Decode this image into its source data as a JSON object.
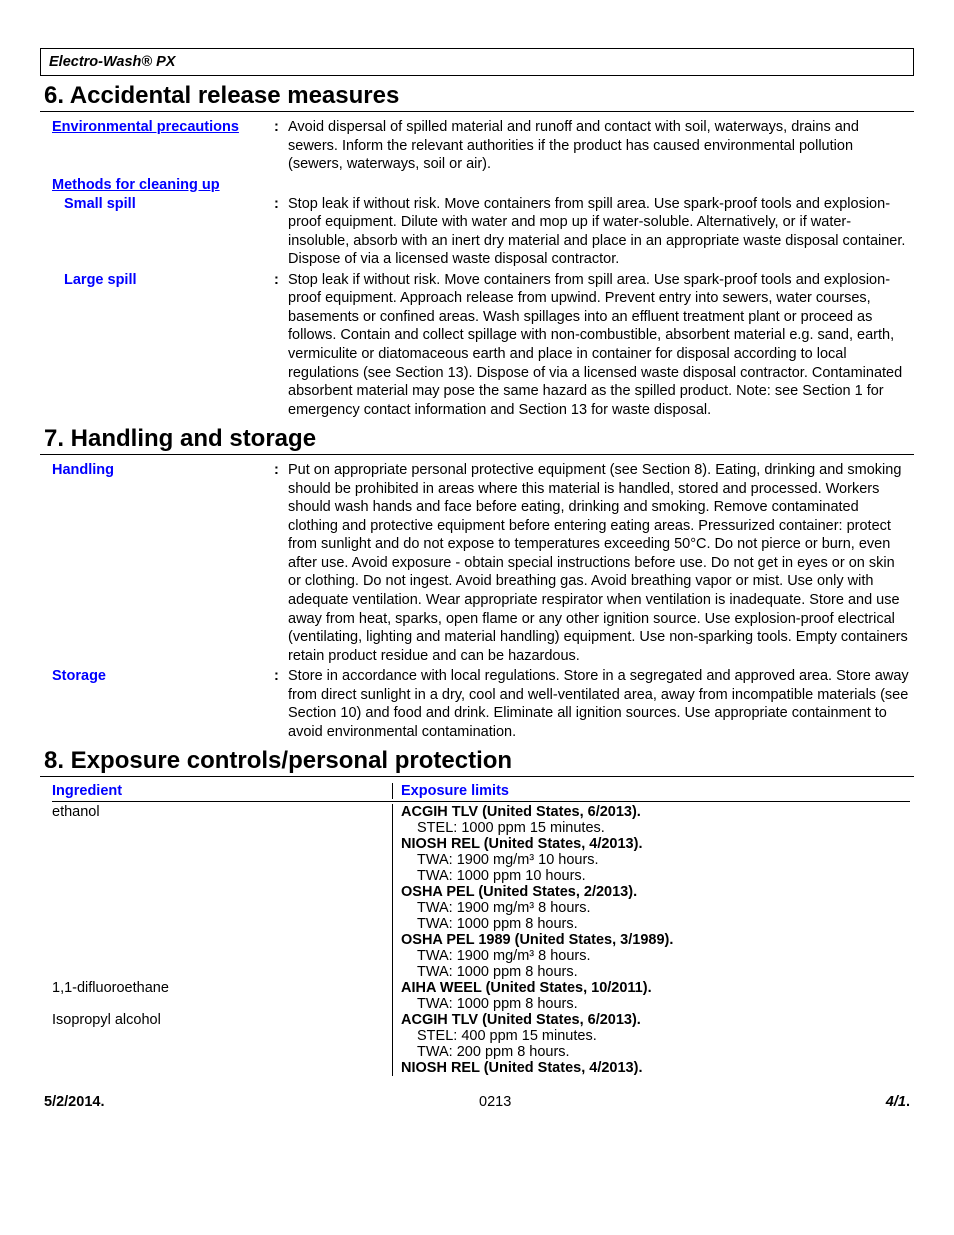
{
  "header": {
    "product": "Electro-Wash® PX"
  },
  "sections": {
    "s6": {
      "title": "6. Accidental release measures",
      "env_precautions_label": "Environmental precautions",
      "env_precautions": "Avoid dispersal of spilled material and runoff and contact with soil, waterways, drains and sewers.  Inform the relevant authorities if the product has caused environmental pollution (sewers, waterways, soil or air).",
      "methods_label": "Methods for cleaning up",
      "small_spill_label": "Small spill",
      "small_spill": "Stop leak if without risk.  Move containers from spill area.  Use spark-proof tools and explosion-proof equipment.  Dilute with water and mop up if water-soluble.  Alternatively, or if water-insoluble, absorb with an inert dry material and place in an appropriate waste disposal container.  Dispose of via a licensed waste disposal contractor.",
      "large_spill_label": "Large spill",
      "large_spill": "Stop leak if without risk.  Move containers from spill area.  Use spark-proof tools and explosion-proof equipment.  Approach release from upwind.  Prevent entry into sewers, water courses, basements or confined areas.  Wash spillages into an effluent treatment plant or proceed as follows.  Contain and collect spillage with non-combustible, absorbent material e.g. sand, earth, vermiculite or diatomaceous earth and place in container for disposal according to local regulations (see Section 13).  Dispose of via a licensed waste disposal contractor.  Contaminated absorbent material may pose the same hazard as the spilled product.  Note: see Section 1 for emergency contact information and Section 13 for waste disposal."
    },
    "s7": {
      "title": "7. Handling and storage",
      "handling_label": "Handling",
      "handling": "Put on appropriate personal protective equipment (see Section 8).  Eating, drinking and smoking should be prohibited in areas where this material is handled, stored and processed.  Workers should wash hands and face before eating, drinking and smoking.  Remove contaminated clothing and protective equipment before entering eating areas.  Pressurized container: protect from sunlight and do not expose to temperatures exceeding 50°C.  Do not pierce or burn, even after use.  Avoid exposure - obtain special instructions before use.  Do not get in eyes or on skin or clothing.  Do not ingest.  Avoid breathing gas.  Avoid breathing vapor or mist.  Use only with adequate ventilation.  Wear appropriate respirator when ventilation is inadequate.  Store and use away from heat, sparks, open flame or any other ignition source.  Use explosion-proof electrical (ventilating, lighting and material handling) equipment.  Use non-sparking tools.  Empty containers retain product residue and can be hazardous.",
      "storage_label": "Storage",
      "storage": "Store in accordance with local regulations.  Store in a segregated and approved area.  Store away from direct sunlight in a dry, cool and well-ventilated area, away from incompatible materials (see Section 10) and food and drink.  Eliminate all ignition sources.  Use appropriate containment to avoid environmental contamination."
    },
    "s8": {
      "title": "8. Exposure controls/personal protection",
      "ingredient_header": "Ingredient",
      "limits_header": "Exposure limits",
      "ingredients": [
        {
          "name": "ethanol",
          "limits": [
            {
              "bold": true,
              "text": "ACGIH TLV (United States, 6/2013)."
            },
            {
              "bold": false,
              "text": "STEL: 1000 ppm 15 minutes."
            },
            {
              "bold": true,
              "text": "NIOSH REL (United States, 4/2013)."
            },
            {
              "bold": false,
              "text": "TWA: 1900 mg/m³ 10 hours."
            },
            {
              "bold": false,
              "text": "TWA: 1000 ppm 10 hours."
            },
            {
              "bold": true,
              "text": "OSHA PEL (United States, 2/2013)."
            },
            {
              "bold": false,
              "text": "TWA: 1900 mg/m³ 8 hours."
            },
            {
              "bold": false,
              "text": "TWA: 1000 ppm 8 hours."
            },
            {
              "bold": true,
              "text": "OSHA PEL 1989 (United States, 3/1989)."
            },
            {
              "bold": false,
              "text": "TWA: 1900 mg/m³ 8 hours."
            },
            {
              "bold": false,
              "text": "TWA: 1000 ppm 8 hours."
            }
          ]
        },
        {
          "name": "1,1-difluoroethane",
          "limits": [
            {
              "bold": true,
              "text": "AIHA WEEL (United States, 10/2011)."
            },
            {
              "bold": false,
              "text": "TWA: 1000 ppm 8 hours."
            }
          ]
        },
        {
          "name": "Isopropyl alcohol",
          "limits": [
            {
              "bold": true,
              "text": "ACGIH TLV (United States, 6/2013)."
            },
            {
              "bold": false,
              "text": "STEL: 400 ppm 15 minutes."
            },
            {
              "bold": false,
              "text": "TWA: 200 ppm 8 hours."
            },
            {
              "bold": true,
              "text": "NIOSH REL (United States, 4/2013)."
            }
          ]
        }
      ]
    }
  },
  "footer": {
    "date": "5/2/2014.",
    "code": "0213",
    "page": "4/1"
  }
}
